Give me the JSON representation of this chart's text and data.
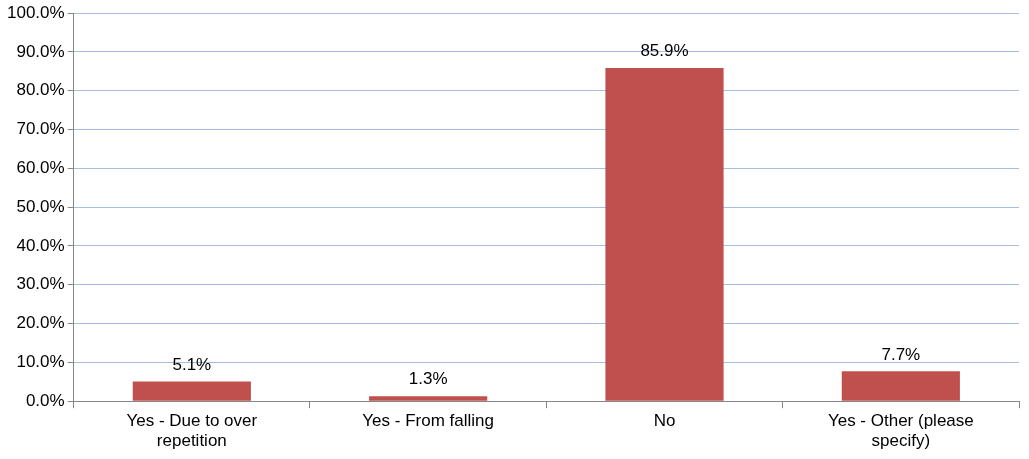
{
  "chart_data": {
    "type": "bar",
    "categories": [
      "Yes - Due to over repetition",
      "Yes - From falling",
      "No",
      "Yes - Other (please specify)"
    ],
    "values": [
      5.1,
      1.3,
      85.9,
      7.7
    ],
    "color": "#c0504d",
    "value_labels": [
      "5.1%",
      "1.3%",
      "85.9%",
      "7.7%"
    ],
    "ylim": [
      0,
      100
    ],
    "yticks": [
      {
        "value": 0,
        "label": "0.0%"
      },
      {
        "value": 10,
        "label": "10.0%"
      },
      {
        "value": 20,
        "label": "20.0%"
      },
      {
        "value": 30,
        "label": "30.0%"
      },
      {
        "value": 40,
        "label": "40.0%"
      },
      {
        "value": 50,
        "label": "50.0%"
      },
      {
        "value": 60,
        "label": "60.0%"
      },
      {
        "value": 70,
        "label": "70.0%"
      },
      {
        "value": 80,
        "label": "80.0%"
      },
      {
        "value": 90,
        "label": "90.0%"
      },
      {
        "value": 100,
        "label": "100.0%"
      }
    ],
    "grid": "y"
  }
}
